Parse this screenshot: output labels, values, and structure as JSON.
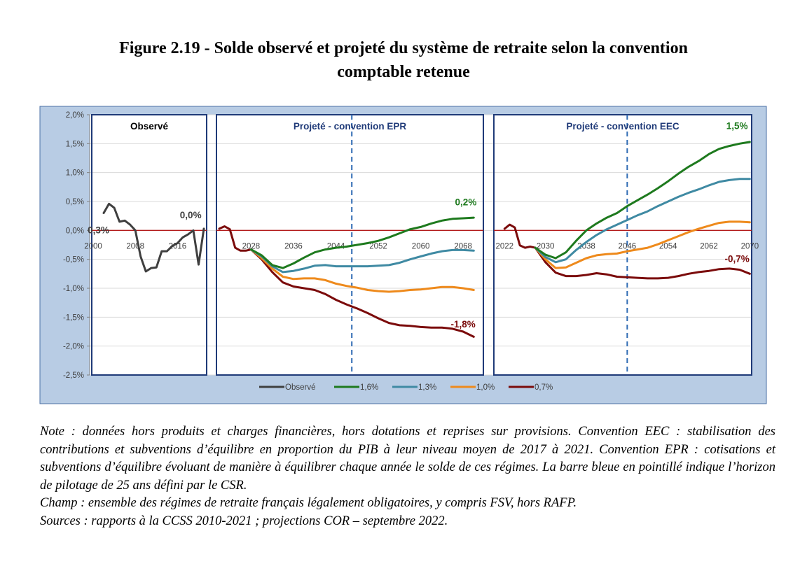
{
  "figure": {
    "title_line1": "Figure 2.19 - Solde observé et projeté du système de retraite selon la convention",
    "title_line2": "comptable retenue"
  },
  "chart_data": {
    "type": "line",
    "ylim": [
      -2.5,
      2.0
    ],
    "yticks": [
      2.0,
      1.5,
      1.0,
      0.5,
      0.0,
      -0.5,
      -1.0,
      -1.5,
      -2.0,
      -2.5
    ],
    "ytick_labels": [
      "2,0%",
      "1,5%",
      "1,0%",
      "0,5%",
      "0,0%",
      "-0,5%",
      "-1,0%",
      "-1,5%",
      "-2,0%",
      "-2,5%"
    ],
    "colors": {
      "observe": "#3f3f3f",
      "s16": "#1e7a1e",
      "s13": "#3f8aa3",
      "s10": "#ee8a1c",
      "s07": "#7b0b0b",
      "zero_line": "#b31b1b",
      "panel_border": "#1f3a78",
      "pilot_line": "#2e6ab3",
      "outer_bg": "#b8cce4",
      "panel_label": "#1f3a78"
    },
    "panels": [
      {
        "id": "observe",
        "label": "Observé",
        "label_color": "#000000",
        "xlim": [
          2000,
          2021
        ],
        "xticks": [
          2000,
          2008,
          2016
        ],
        "xtick_labels": [
          "2000",
          "2008",
          "2016"
        ],
        "series": [
          {
            "key": "observe",
            "name": "Observé",
            "x": [
              2002,
              2003,
              2004,
              2005,
              2006,
              2007,
              2008,
              2009,
              2010,
              2011,
              2012,
              2013,
              2014,
              2015,
              2016,
              2017,
              2018,
              2019,
              2020,
              2021
            ],
            "y": [
              0.3,
              0.46,
              0.39,
              0.15,
              0.17,
              0.1,
              0.0,
              -0.45,
              -0.71,
              -0.65,
              -0.64,
              -0.36,
              -0.36,
              -0.27,
              -0.22,
              -0.12,
              -0.07,
              0.0,
              -0.59,
              0.03
            ]
          }
        ],
        "annotations": [
          {
            "text": "0,3%",
            "x": 2001,
            "y": 0.0,
            "color": "#3f3f3f"
          },
          {
            "text": "0,0%",
            "x": 2018.5,
            "y": 0.26,
            "color": "#3f3f3f"
          }
        ]
      },
      {
        "id": "epr",
        "label": "Projeté - convention EPR",
        "xlim": [
          2022,
          2073
        ],
        "pilot_year": 2047,
        "xticks": [
          2028,
          2036,
          2044,
          2052,
          2060,
          2068
        ],
        "xtick_labels": [
          "2028",
          "2036",
          "2044",
          "2052",
          "2060",
          "2068"
        ],
        "series": [
          {
            "key": "s07",
            "name": "0,7%",
            "x": [
              2022,
              2023,
              2024,
              2025,
              2026,
              2027,
              2028,
              2030,
              2032,
              2034,
              2036,
              2038,
              2040,
              2042,
              2044,
              2046,
              2048,
              2050,
              2052,
              2054,
              2056,
              2058,
              2060,
              2062,
              2064,
              2066,
              2068,
              2070
            ],
            "y": [
              0.03,
              0.07,
              0.02,
              -0.3,
              -0.35,
              -0.35,
              -0.33,
              -0.5,
              -0.72,
              -0.9,
              -0.97,
              -1.0,
              -1.03,
              -1.1,
              -1.2,
              -1.28,
              -1.35,
              -1.43,
              -1.52,
              -1.6,
              -1.64,
              -1.65,
              -1.67,
              -1.68,
              -1.68,
              -1.7,
              -1.75,
              -1.84
            ]
          },
          {
            "key": "s10",
            "name": "1,0%",
            "x": [
              2028,
              2030,
              2032,
              2034,
              2036,
              2038,
              2040,
              2042,
              2044,
              2046,
              2048,
              2050,
              2052,
              2054,
              2056,
              2058,
              2060,
              2062,
              2064,
              2066,
              2068,
              2070
            ],
            "y": [
              -0.33,
              -0.48,
              -0.66,
              -0.8,
              -0.84,
              -0.83,
              -0.83,
              -0.86,
              -0.92,
              -0.96,
              -0.99,
              -1.03,
              -1.05,
              -1.06,
              -1.05,
              -1.03,
              -1.02,
              -1.0,
              -0.98,
              -0.98,
              -1.0,
              -1.03
            ]
          },
          {
            "key": "s13",
            "name": "1,3%",
            "x": [
              2028,
              2030,
              2032,
              2034,
              2036,
              2038,
              2040,
              2042,
              2044,
              2046,
              2048,
              2050,
              2052,
              2054,
              2056,
              2058,
              2060,
              2062,
              2064,
              2066,
              2068,
              2070
            ],
            "y": [
              -0.33,
              -0.45,
              -0.62,
              -0.72,
              -0.7,
              -0.66,
              -0.61,
              -0.6,
              -0.62,
              -0.62,
              -0.62,
              -0.62,
              -0.61,
              -0.6,
              -0.56,
              -0.5,
              -0.45,
              -0.4,
              -0.36,
              -0.34,
              -0.34,
              -0.35
            ]
          },
          {
            "key": "s16",
            "name": "1,6%",
            "x": [
              2028,
              2030,
              2032,
              2034,
              2036,
              2038,
              2040,
              2042,
              2044,
              2046,
              2048,
              2050,
              2052,
              2054,
              2056,
              2058,
              2060,
              2062,
              2064,
              2066,
              2068,
              2070
            ],
            "y": [
              -0.33,
              -0.43,
              -0.6,
              -0.65,
              -0.57,
              -0.47,
              -0.38,
              -0.33,
              -0.3,
              -0.28,
              -0.25,
              -0.22,
              -0.18,
              -0.12,
              -0.05,
              0.02,
              0.06,
              0.12,
              0.17,
              0.2,
              0.21,
              0.22
            ]
          }
        ],
        "annotations": [
          {
            "text": "0,2%",
            "x": 2068.5,
            "y": 0.48,
            "color": "#1e7a1e"
          },
          {
            "text": "-1,8%",
            "x": 2068,
            "y": -1.63,
            "color": "#7b0b0b"
          }
        ]
      },
      {
        "id": "eec",
        "label": "Projeté - convention EEC",
        "xlim": [
          2021,
          2072
        ],
        "pilot_year": 2046,
        "xticks": [
          2022,
          2030,
          2038,
          2046,
          2054,
          2062,
          2070
        ],
        "xtick_labels": [
          "2022",
          "2030",
          "2038",
          "2046",
          "2054",
          "2062",
          "2070"
        ],
        "series": [
          {
            "key": "s07",
            "name": "0,7%",
            "x": [
              2022,
              2023,
              2024,
              2025,
              2026,
              2027,
              2028,
              2030,
              2032,
              2034,
              2036,
              2038,
              2040,
              2042,
              2044,
              2046,
              2048,
              2050,
              2052,
              2054,
              2056,
              2058,
              2060,
              2062,
              2064,
              2066,
              2068,
              2070
            ],
            "y": [
              0.03,
              0.1,
              0.05,
              -0.26,
              -0.3,
              -0.28,
              -0.3,
              -0.55,
              -0.73,
              -0.79,
              -0.79,
              -0.77,
              -0.74,
              -0.76,
              -0.8,
              -0.81,
              -0.82,
              -0.83,
              -0.83,
              -0.82,
              -0.79,
              -0.75,
              -0.72,
              -0.7,
              -0.67,
              -0.66,
              -0.68,
              -0.75
            ]
          },
          {
            "key": "s10",
            "name": "1,0%",
            "x": [
              2028,
              2030,
              2032,
              2034,
              2036,
              2038,
              2040,
              2042,
              2044,
              2046,
              2048,
              2050,
              2052,
              2054,
              2056,
              2058,
              2060,
              2062,
              2064,
              2066,
              2068,
              2070
            ],
            "y": [
              -0.3,
              -0.5,
              -0.65,
              -0.64,
              -0.56,
              -0.48,
              -0.43,
              -0.41,
              -0.4,
              -0.36,
              -0.33,
              -0.3,
              -0.24,
              -0.17,
              -0.1,
              -0.03,
              0.03,
              0.08,
              0.13,
              0.15,
              0.15,
              0.14
            ]
          },
          {
            "key": "s13",
            "name": "1,3%",
            "x": [
              2028,
              2030,
              2032,
              2034,
              2036,
              2038,
              2040,
              2042,
              2044,
              2046,
              2048,
              2050,
              2052,
              2054,
              2056,
              2058,
              2060,
              2062,
              2064,
              2066,
              2068,
              2070
            ],
            "y": [
              -0.3,
              -0.46,
              -0.55,
              -0.5,
              -0.34,
              -0.2,
              -0.08,
              0.02,
              0.1,
              0.18,
              0.26,
              0.33,
              0.42,
              0.5,
              0.58,
              0.65,
              0.71,
              0.78,
              0.84,
              0.87,
              0.89,
              0.89
            ]
          },
          {
            "key": "s16",
            "name": "1,6%",
            "x": [
              2028,
              2030,
              2032,
              2034,
              2036,
              2038,
              2040,
              2042,
              2044,
              2046,
              2048,
              2050,
              2052,
              2054,
              2056,
              2058,
              2060,
              2062,
              2064,
              2066,
              2068,
              2070
            ],
            "y": [
              -0.3,
              -0.42,
              -0.48,
              -0.38,
              -0.18,
              0.0,
              0.12,
              0.22,
              0.3,
              0.42,
              0.52,
              0.62,
              0.73,
              0.85,
              0.98,
              1.1,
              1.2,
              1.32,
              1.41,
              1.46,
              1.5,
              1.53
            ]
          }
        ],
        "annotations": [
          {
            "text": "1,5%",
            "x": 2067.5,
            "y": 1.8,
            "color": "#1e7a1e"
          },
          {
            "text": "-0,7%",
            "x": 2067.5,
            "y": -0.5,
            "color": "#7b0b0b"
          }
        ]
      }
    ],
    "legend": [
      {
        "key": "observe",
        "name": "Observé"
      },
      {
        "key": "s16",
        "name": "1,6%"
      },
      {
        "key": "s13",
        "name": "1,3%"
      },
      {
        "key": "s10",
        "name": "1,0%"
      },
      {
        "key": "s07",
        "name": "0,7%"
      }
    ]
  },
  "note": {
    "line1": "Note : données hors produits et charges financières, hors dotations et reprises sur provisions. Convention EEC : stabilisation des contributions et subventions d’équilibre en proportion du PIB à leur niveau moyen de 2017 à 2021. Convention EPR : cotisations et subventions d’équilibre évoluant de manière à équilibrer chaque année le solde de ces régimes. La barre bleue en pointillé indique l’horizon de pilotage de 25 ans défini par le CSR.",
    "line2": "Champ : ensemble des régimes de retraite français légalement obligatoires, y compris FSV, hors RAFP.",
    "line3": "Sources : rapports à la CCSS 2010-2021 ; projections COR – septembre 2022."
  }
}
